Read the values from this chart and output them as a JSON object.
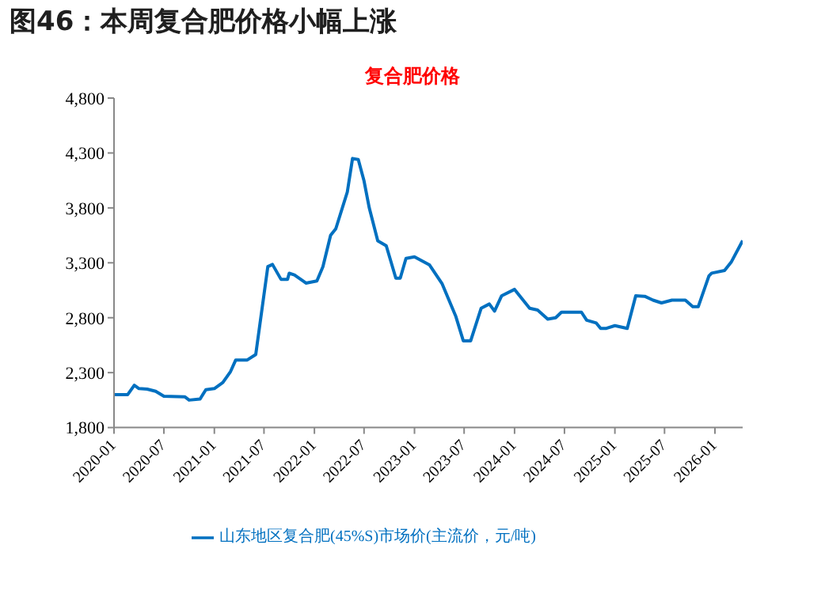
{
  "chart_data": {
    "type": "line",
    "title": "图46：本周复合肥价格小幅上涨",
    "subtitle": "复合肥价格",
    "x": [
      "2020-01",
      "2020-02-20",
      "2020-03-15",
      "2020-04",
      "2020-05",
      "2020-06",
      "2020-07",
      "2020-09-15",
      "2020-10",
      "2020-11-10",
      "2020-12",
      "2021-01",
      "2021-02",
      "2021-03",
      "2021-03-20",
      "2021-05",
      "2021-06",
      "2021-06-20",
      "2021-07-15",
      "2021-08",
      "2021-09",
      "2021-09-25",
      "2021-10",
      "2021-10-20",
      "2021-11-20",
      "2021-12",
      "2022-01-10",
      "2022-02",
      "2022-03",
      "2022-03-20",
      "2022-05",
      "2022-05-20",
      "2022-06-10",
      "2022-07",
      "2022-07-20",
      "2022-08-20",
      "2022-09-20",
      "2022-10-25",
      "2022-11-10",
      "2022-12",
      "2023-01",
      "2023-02-25",
      "2023-04-12",
      "2023-06",
      "2023-06-28",
      "2023-07-25",
      "2023-09",
      "2023-10",
      "2023-10-20",
      "2023-11-15",
      "2024-01",
      "2024-02-25",
      "2024-03-25",
      "2024-05",
      "2024-05-30",
      "2024-06-20",
      "2024-09",
      "2024-09-20",
      "2024-10-25",
      "2024-11-10",
      "2024-12",
      "2025-01",
      "2025-02-15",
      "2025-03-18",
      "2025-04-20",
      "2025-05-20",
      "2025-06-20",
      "2025-07-28",
      "2025-09-15",
      "2025-10-12",
      "2025-11",
      "2025-12-10",
      "2025-12-20",
      "2026-02-05",
      "2026-03",
      "2026-04-12"
    ],
    "series": [
      {
        "name": "山东地区复合肥(45%S)市场价(主流价，元/吨)",
        "color": "#0070c0",
        "values": [
          2100,
          2100,
          2185,
          2155,
          2150,
          2130,
          2085,
          2080,
          2050,
          2060,
          2145,
          2155,
          2210,
          2310,
          2415,
          2415,
          2465,
          2810,
          3265,
          3285,
          3150,
          3150,
          3205,
          3190,
          3135,
          3115,
          3135,
          3265,
          3550,
          3610,
          3945,
          4250,
          4240,
          4045,
          3800,
          3500,
          3455,
          3160,
          3160,
          3340,
          3354,
          3280,
          3108,
          2810,
          2590,
          2590,
          2886,
          2925,
          2860,
          3000,
          3058,
          2886,
          2870,
          2787,
          2800,
          2850,
          2850,
          2777,
          2752,
          2703,
          2703,
          2728,
          2703,
          3000,
          2995,
          2960,
          2935,
          2960,
          2960,
          2900,
          2900,
          3180,
          3206,
          3230,
          3305,
          3502
        ]
      }
    ],
    "xlim": [
      "2020-01",
      "2026-04-12"
    ],
    "xticks": [
      "2020-01",
      "2020-07",
      "2021-01",
      "2021-07",
      "2022-01",
      "2022-07",
      "2023-01",
      "2023-07",
      "2024-01",
      "2024-07",
      "2025-01",
      "2025-07",
      "2026-01"
    ],
    "ylim": [
      1800,
      4800
    ],
    "yticks": [
      {
        "value": 1800,
        "label": "1,800"
      },
      {
        "value": 2300,
        "label": "2,300"
      },
      {
        "value": 2800,
        "label": "2,800"
      },
      {
        "value": 3300,
        "label": "3,300"
      },
      {
        "value": 3800,
        "label": "3,800"
      },
      {
        "value": 4300,
        "label": "4,300"
      },
      {
        "value": 4800,
        "label": "4,800"
      }
    ],
    "grid": false,
    "legend": "bottom",
    "marker": "none",
    "line_style": "solid"
  }
}
